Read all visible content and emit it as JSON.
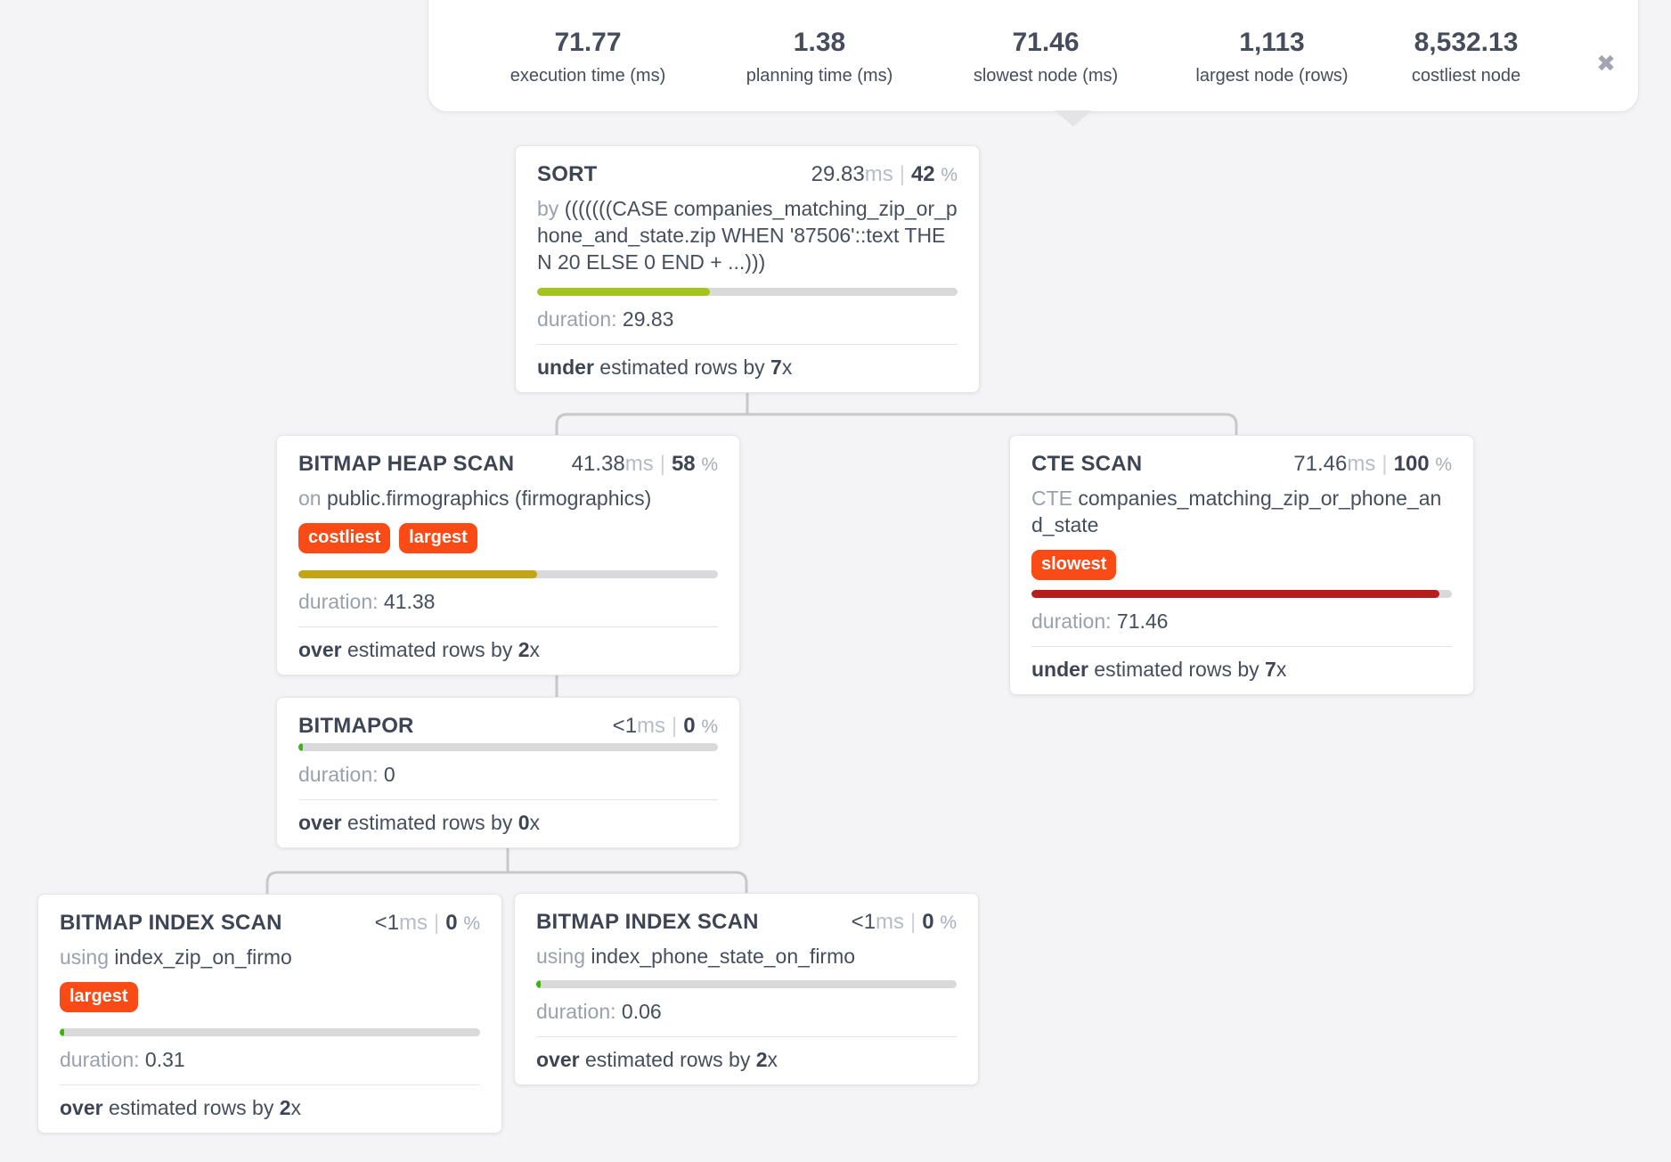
{
  "stats_bar": {
    "stats": [
      {
        "value": "71.77",
        "label": "execution time (ms)"
      },
      {
        "value": "1.38",
        "label": "planning time (ms)"
      },
      {
        "value": "71.46",
        "label": "slowest node (ms)"
      },
      {
        "value": "1,113",
        "label": "largest node (rows)"
      },
      {
        "value": "8,532.13",
        "label": "costliest node"
      }
    ],
    "close_icon": "✖"
  },
  "badge_color": "#fa4a16",
  "nodes": [
    {
      "type": "SORT",
      "time": "29.83",
      "time_unit": "ms",
      "separator": "|",
      "percent": "42",
      "percent_unit": "%",
      "detail_prefix": "by",
      "detail": "(((((((CASE companies_matching_zip_or_phone_and_state.zip WHEN '87506'::text THEN 20 ELSE 0 END + ...)))",
      "badges": [],
      "bar": {
        "fill_pct": 41,
        "color": "#a3c41d"
      },
      "duration_label": "duration:",
      "duration_value": "29.83",
      "footer": {
        "qualifier": "under",
        "text": "estimated rows by",
        "multiplier": "7",
        "suffix": "x"
      }
    },
    {
      "type": "BITMAP HEAP SCAN",
      "time": "41.38",
      "time_unit": "ms",
      "separator": "|",
      "percent": "58",
      "percent_unit": "%",
      "detail_prefix": "on",
      "detail": "public.firmographics (firmographics)",
      "badges": [
        "costliest",
        "largest"
      ],
      "bar": {
        "fill_pct": 57,
        "color": "#c2a414"
      },
      "duration_label": "duration:",
      "duration_value": "41.38",
      "footer": {
        "qualifier": "over",
        "text": "estimated rows by",
        "multiplier": "2",
        "suffix": "x"
      }
    },
    {
      "type": "CTE SCAN",
      "time": "71.46",
      "time_unit": "ms",
      "separator": "|",
      "percent": "100",
      "percent_unit": "%",
      "detail_prefix": "CTE",
      "detail": "companies_matching_zip_or_phone_and_state",
      "badges": [
        "slowest"
      ],
      "bar": {
        "fill_pct": 97,
        "color": "#b71d1d"
      },
      "duration_label": "duration:",
      "duration_value": "71.46",
      "footer": {
        "qualifier": "under",
        "text": "estimated rows by",
        "multiplier": "7",
        "suffix": "x"
      }
    },
    {
      "type": "BITMAPOR",
      "time": "<1",
      "time_unit": "ms",
      "separator": "|",
      "percent": "0",
      "percent_unit": "%",
      "detail_prefix": "",
      "detail": "",
      "badges": [],
      "bar": {
        "fill_pct": 1,
        "color": "#3db30f"
      },
      "duration_label": "duration:",
      "duration_value": "0",
      "footer": {
        "qualifier": "over",
        "text": "estimated rows by",
        "multiplier": "0",
        "suffix": "x"
      }
    },
    {
      "type": "BITMAP INDEX SCAN",
      "time": "<1",
      "time_unit": "ms",
      "separator": "|",
      "percent": "0",
      "percent_unit": "%",
      "detail_prefix": "using",
      "detail": "index_zip_on_firmo",
      "badges": [
        "largest"
      ],
      "bar": {
        "fill_pct": 1,
        "color": "#3db30f"
      },
      "duration_label": "duration:",
      "duration_value": "0.31",
      "footer": {
        "qualifier": "over",
        "text": "estimated rows by",
        "multiplier": "2",
        "suffix": "x"
      }
    },
    {
      "type": "BITMAP INDEX SCAN",
      "time": "<1",
      "time_unit": "ms",
      "separator": "|",
      "percent": "0",
      "percent_unit": "%",
      "detail_prefix": "using",
      "detail": "index_phone_state_on_firmo",
      "badges": [],
      "bar": {
        "fill_pct": 1,
        "color": "#3db30f"
      },
      "duration_label": "duration:",
      "duration_value": "0.06",
      "footer": {
        "qualifier": "over",
        "text": "estimated rows by",
        "multiplier": "2",
        "suffix": "x"
      }
    }
  ]
}
